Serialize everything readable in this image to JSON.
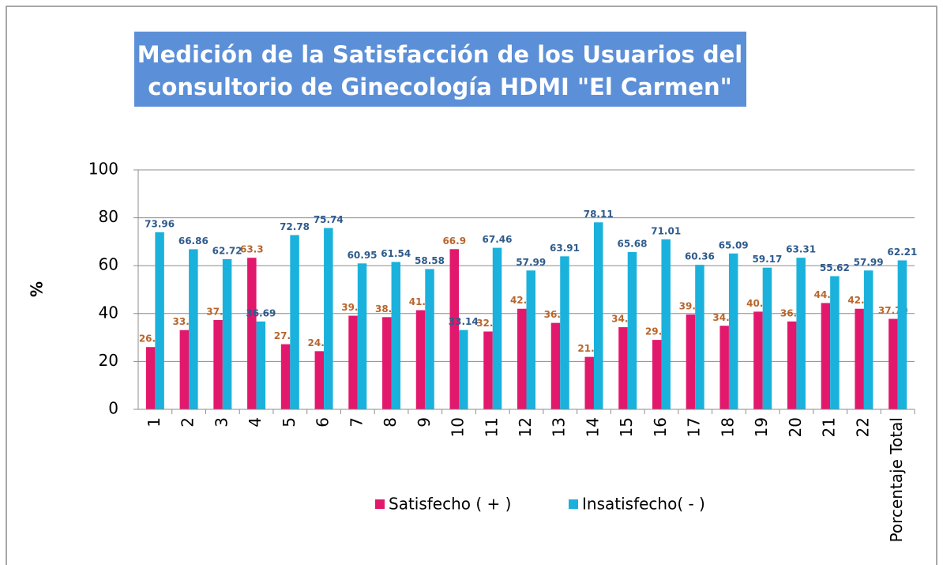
{
  "chart_data": {
    "type": "bar",
    "title": [
      "Medición de la Satisfacción de los Usuarios del",
      "consultorio de Ginecología HDMI \"El Carmen\""
    ],
    "y_label": "%",
    "categories": [
      "1",
      "2",
      "3",
      "4",
      "5",
      "6",
      "7",
      "8",
      "9",
      "10",
      "11",
      "12",
      "13",
      "14",
      "15",
      "16",
      "17",
      "18",
      "19",
      "20",
      "21",
      "22",
      "Porcentaje Total"
    ],
    "series": [
      {
        "name": "Satisfecho ( + )",
        "color": "#e2186c",
        "label_color": "#b8662c",
        "values": [
          26.0,
          33.1,
          37.3,
          63.3,
          27.2,
          24.3,
          39.1,
          38.5,
          41.4,
          66.9,
          32.5,
          42.0,
          36.1,
          21.9,
          34.3,
          29.0,
          39.6,
          34.9,
          40.8,
          36.7,
          44.4,
          42.0,
          37.79
        ],
        "value_labels": [
          "26.0",
          "33.1",
          "37.3",
          "63.3",
          "27.2",
          "24.3",
          "39.1",
          "38.5",
          "41.4",
          "66.9",
          "32.5",
          "42.0",
          "36.1",
          "21.9",
          "34.3",
          "29.0",
          "39.6",
          "34.9",
          "40.8",
          "36.7",
          "44.4",
          "42.0",
          "37.79"
        ]
      },
      {
        "name": "Insatisfecho( - )",
        "color": "#1ab2dc",
        "label_color": "#2f5b8c",
        "values": [
          73.96,
          66.86,
          62.72,
          36.69,
          72.78,
          75.74,
          60.95,
          61.54,
          58.58,
          33.14,
          67.46,
          57.99,
          63.91,
          78.11,
          65.68,
          71.01,
          60.36,
          65.09,
          59.17,
          63.31,
          55.62,
          57.99,
          62.21
        ]
      }
    ],
    "ylim": [
      0,
      100
    ],
    "yticks": [
      0,
      20,
      40,
      60,
      80,
      100
    ],
    "grid": true,
    "legend": "bottom"
  }
}
